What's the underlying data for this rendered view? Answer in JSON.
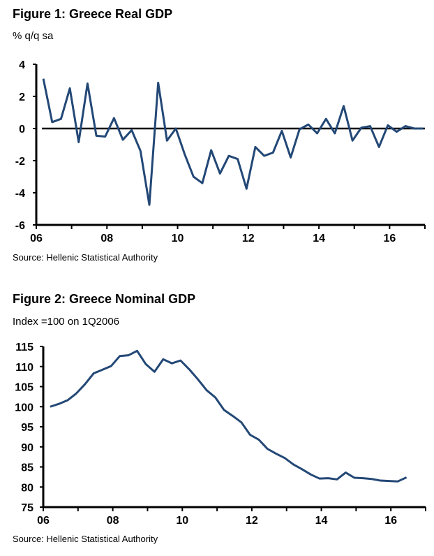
{
  "chart_data": [
    {
      "type": "line",
      "title": "Figure 1: Greece Real GDP",
      "subtitle": "% q/q sa",
      "source": "Source: Hellenic Statistical Authority",
      "xlabel": "",
      "ylabel": "",
      "xlim": [
        2006,
        2017
      ],
      "ylim": [
        -6,
        4
      ],
      "xticks": [
        {
          "v": 2006,
          "label": "06"
        },
        {
          "v": 2008,
          "label": "08"
        },
        {
          "v": 2010,
          "label": "10"
        },
        {
          "v": 2012,
          "label": "12"
        },
        {
          "v": 2014,
          "label": "14"
        },
        {
          "v": 2016,
          "label": "16"
        }
      ],
      "yticks": [
        {
          "v": 4,
          "label": "4"
        },
        {
          "v": 2,
          "label": "2"
        },
        {
          "v": 0,
          "label": "0"
        },
        {
          "v": -2,
          "label": "-2"
        },
        {
          "v": -4,
          "label": "-4"
        },
        {
          "v": -6,
          "label": "-6"
        }
      ],
      "zero_line": true,
      "x_start": "2006Q1",
      "series": [
        {
          "name": "Real GDP % q/q sa",
          "color": "#234876",
          "values": [
            3.1,
            0.4,
            0.6,
            2.5,
            -0.85,
            2.8,
            -0.45,
            -0.5,
            0.65,
            -0.7,
            -0.1,
            -1.4,
            -4.75,
            2.85,
            -0.75,
            0.0,
            -1.6,
            -3.0,
            -3.4,
            -1.35,
            -2.8,
            -1.7,
            -1.9,
            -3.75,
            -1.15,
            -1.7,
            -1.5,
            -0.15,
            -1.8,
            -0.05,
            0.25,
            -0.3,
            0.6,
            -0.3,
            1.4,
            -0.75,
            0.05,
            0.15,
            -1.15,
            0.2,
            -0.2,
            0.15,
            0.0,
            0.0
          ]
        }
      ]
    },
    {
      "type": "line",
      "title": "Figure 2: Greece Nominal GDP",
      "subtitle": "Index =100 on 1Q2006",
      "source": "Source: Hellenic Statistical Authority",
      "xlabel": "",
      "ylabel": "",
      "xlim": [
        2006,
        2017
      ],
      "ylim": [
        75,
        115
      ],
      "xticks": [
        {
          "v": 2006,
          "label": "06"
        },
        {
          "v": 2008,
          "label": "08"
        },
        {
          "v": 2010,
          "label": "10"
        },
        {
          "v": 2012,
          "label": "12"
        },
        {
          "v": 2014,
          "label": "14"
        },
        {
          "v": 2016,
          "label": "16"
        }
      ],
      "yticks": [
        {
          "v": 115,
          "label": "115"
        },
        {
          "v": 110,
          "label": "110"
        },
        {
          "v": 105,
          "label": "105"
        },
        {
          "v": 100,
          "label": "100"
        },
        {
          "v": 95,
          "label": "95"
        },
        {
          "v": 90,
          "label": "90"
        },
        {
          "v": 85,
          "label": "85"
        },
        {
          "v": 80,
          "label": "80"
        },
        {
          "v": 75,
          "label": "75"
        }
      ],
      "zero_line": false,
      "x_start": "2006Q1",
      "series": [
        {
          "name": "Nominal GDP index",
          "color": "#234876",
          "values": [
            100,
            100.7,
            101.6,
            103.3,
            105.6,
            108.3,
            109.2,
            110.1,
            112.6,
            112.8,
            113.9,
            110.6,
            108.7,
            111.8,
            110.8,
            111.5,
            109.3,
            106.8,
            104.1,
            102.3,
            99.2,
            97.7,
            96.1,
            93.0,
            91.8,
            89.5,
            88.3,
            87.2,
            85.6,
            84.4,
            83.1,
            82.1,
            82.2,
            81.9,
            83.6,
            82.3,
            82.2,
            82.0,
            81.6,
            81.5,
            81.4,
            82.4
          ]
        }
      ]
    }
  ]
}
